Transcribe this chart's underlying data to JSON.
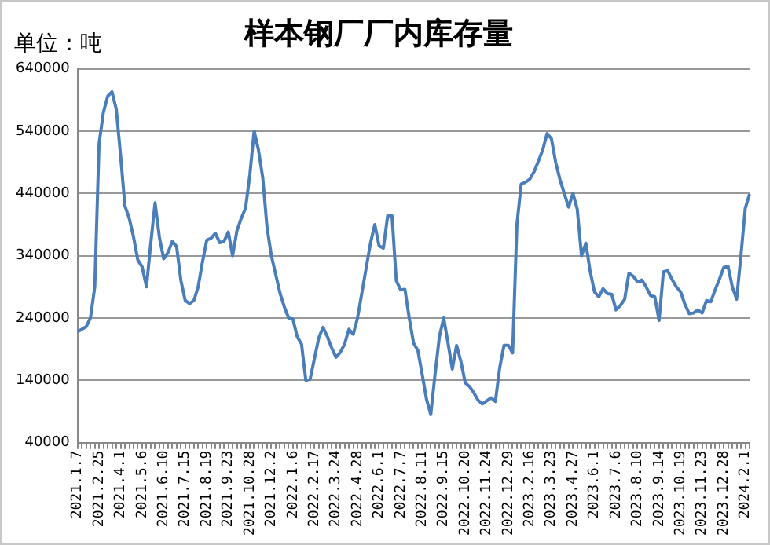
{
  "chart_data": {
    "type": "line",
    "title": "样本钢厂厂内库存量",
    "ylabel": "单位：吨",
    "categories": [
      "2021.1.7",
      null,
      null,
      null,
      null,
      "2021.2.25",
      null,
      null,
      null,
      null,
      "2021.4.1",
      null,
      null,
      null,
      null,
      "2021.5.6",
      null,
      null,
      null,
      null,
      "2021.6.10",
      null,
      null,
      null,
      null,
      "2021.7.15",
      null,
      null,
      null,
      null,
      "2021.8.19",
      null,
      null,
      null,
      null,
      "2021.9.23",
      null,
      null,
      null,
      null,
      "2021.10.28",
      null,
      null,
      null,
      null,
      "2021.12.2",
      null,
      null,
      null,
      null,
      "2022.1.6",
      null,
      null,
      null,
      null,
      "2022.2.17",
      null,
      null,
      null,
      null,
      "2022.3.24",
      null,
      null,
      null,
      null,
      "2022.4.28",
      null,
      null,
      null,
      null,
      "2022.6.1",
      null,
      null,
      null,
      null,
      "2022.7.7",
      null,
      null,
      null,
      null,
      "2022.8.11",
      null,
      null,
      null,
      null,
      "2022.9.15",
      null,
      null,
      null,
      null,
      "2022.10.20",
      null,
      null,
      null,
      null,
      "2022.11.24",
      null,
      null,
      null,
      null,
      "2022.12.29",
      null,
      null,
      null,
      null,
      "2023.2.16",
      null,
      null,
      null,
      null,
      "2023.3.23",
      null,
      null,
      null,
      null,
      "2023.4.27",
      null,
      null,
      null,
      null,
      "2023.6.1",
      null,
      null,
      null,
      null,
      "2023.7.6",
      null,
      null,
      null,
      null,
      "2023.8.10",
      null,
      null,
      null,
      null,
      "2023.9.14",
      null,
      null,
      null,
      null,
      "2023.10.19",
      null,
      null,
      null,
      null,
      "2023.11.23",
      null,
      null,
      null,
      null,
      "2023.12.28",
      null,
      null,
      null,
      null,
      "2024.2.1",
      null
    ],
    "series": [
      {
        "color": "#4a7ebb",
        "values": [
          218000,
          222000,
          226000,
          240000,
          290000,
          520000,
          570000,
          596000,
          603000,
          575000,
          500000,
          420000,
          400000,
          370000,
          333000,
          322000,
          290000,
          360000,
          425000,
          370000,
          335000,
          345000,
          363000,
          355000,
          300000,
          268000,
          263000,
          268000,
          290000,
          330000,
          365000,
          368000,
          376000,
          361000,
          363000,
          378000,
          340000,
          380000,
          400000,
          416000,
          470000,
          540000,
          510000,
          465000,
          385000,
          340000,
          310000,
          280000,
          258000,
          240000,
          238000,
          210000,
          198000,
          140000,
          142000,
          175000,
          208000,
          225000,
          210000,
          192000,
          177000,
          185000,
          198000,
          222000,
          214000,
          240000,
          280000,
          320000,
          360000,
          390000,
          356000,
          352000,
          404000,
          404000,
          300000,
          285000,
          286000,
          240000,
          200000,
          188000,
          150000,
          110000,
          85000,
          150000,
          210000,
          240000,
          200000,
          158000,
          196000,
          170000,
          136000,
          130000,
          120000,
          108000,
          102000,
          107000,
          112000,
          106000,
          160000,
          196000,
          196000,
          184000,
          390000,
          455000,
          458000,
          463000,
          475000,
          492000,
          510000,
          536000,
          528000,
          490000,
          462000,
          440000,
          418000,
          440000,
          415000,
          340000,
          360000,
          315000,
          282000,
          274000,
          287000,
          279000,
          278000,
          253000,
          260000,
          270000,
          312000,
          307000,
          298000,
          301000,
          290000,
          276000,
          274000,
          236000,
          314000,
          316000,
          302000,
          290000,
          282000,
          262000,
          247000,
          248000,
          253000,
          248000,
          268000,
          266000,
          285000,
          302000,
          321000,
          323000,
          290000,
          270000,
          340000,
          416000,
          439000
        ]
      }
    ],
    "ylim": [
      40000,
      640000
    ],
    "yticks": [
      40000,
      140000,
      240000,
      340000,
      440000,
      540000,
      640000
    ],
    "grid": "y",
    "legend": false,
    "marker": "none",
    "line_style": "solid"
  }
}
